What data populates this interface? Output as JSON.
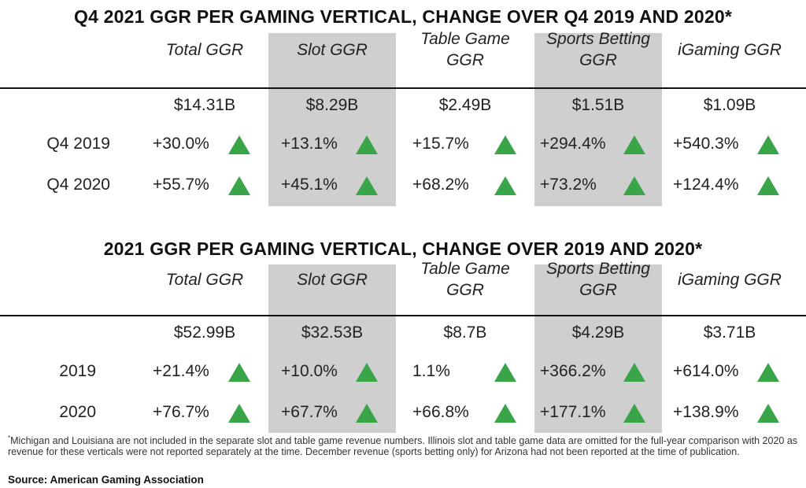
{
  "accent_color": "#3aa548",
  "shade_color": "#cfcfcf",
  "chart_data": [
    {
      "type": "table",
      "title": "Q4 2021 GGR PER GAMING VERTICAL, CHANGE OVER Q4 2019 AND 2020*",
      "columns": [
        "Total GGR",
        "Slot GGR",
        "Table Game GGR",
        "Sports Betting GGR",
        "iGaming GGR"
      ],
      "totals": [
        "$14.31B",
        "$8.29B",
        "$2.49B",
        "$1.51B",
        "$1.09B"
      ],
      "total_values_billions": [
        14.31,
        8.29,
        2.49,
        1.51,
        1.09
      ],
      "rows": [
        {
          "label": "Q4 2019",
          "values": [
            "+30.0%",
            "+13.1%",
            "+15.7%",
            "+294.4%",
            "+540.3%"
          ],
          "numeric": [
            30.0,
            13.1,
            15.7,
            294.4,
            540.3
          ],
          "direction": [
            "up",
            "up",
            "up",
            "up",
            "up"
          ]
        },
        {
          "label": "Q4 2020",
          "values": [
            "+55.7%",
            "+45.1%",
            "+68.2%",
            "+73.2%",
            "+124.4%"
          ],
          "numeric": [
            55.7,
            45.1,
            68.2,
            73.2,
            124.4
          ],
          "direction": [
            "up",
            "up",
            "up",
            "up",
            "up"
          ]
        }
      ]
    },
    {
      "type": "table",
      "title": "2021 GGR PER GAMING VERTICAL, CHANGE OVER 2019 AND 2020*",
      "columns": [
        "Total GGR",
        "Slot GGR",
        "Table Game GGR",
        "Sports Betting GGR",
        "iGaming GGR"
      ],
      "totals": [
        "$52.99B",
        "$32.53B",
        "$8.7B",
        "$4.29B",
        "$3.71B"
      ],
      "total_values_billions": [
        52.99,
        32.53,
        8.7,
        4.29,
        3.71
      ],
      "rows": [
        {
          "label": "2019",
          "values": [
            "+21.4%",
            "+10.0%",
            "1.1%",
            "+366.2%",
            "+614.0%"
          ],
          "numeric": [
            21.4,
            10.0,
            1.1,
            366.2,
            614.0
          ],
          "direction": [
            "up",
            "up",
            "up",
            "up",
            "up"
          ]
        },
        {
          "label": "2020",
          "values": [
            "+76.7%",
            "+67.7%",
            "+66.8%",
            "+177.1%",
            "+138.9%"
          ],
          "numeric": [
            76.7,
            67.7,
            66.8,
            177.1,
            138.9
          ],
          "direction": [
            "up",
            "up",
            "up",
            "up",
            "up"
          ]
        }
      ]
    }
  ],
  "footnote": "Michigan and Louisiana are not included in the separate slot and table game revenue numbers. Illinois slot and table game data are omitted for the full-year comparison with 2020 as revenue for these verticals were not reported separately at the time. December revenue (sports betting only) for Arizona had not been reported at the time of publication.",
  "footnote_marker": "*",
  "source": "Source: American Gaming Association"
}
